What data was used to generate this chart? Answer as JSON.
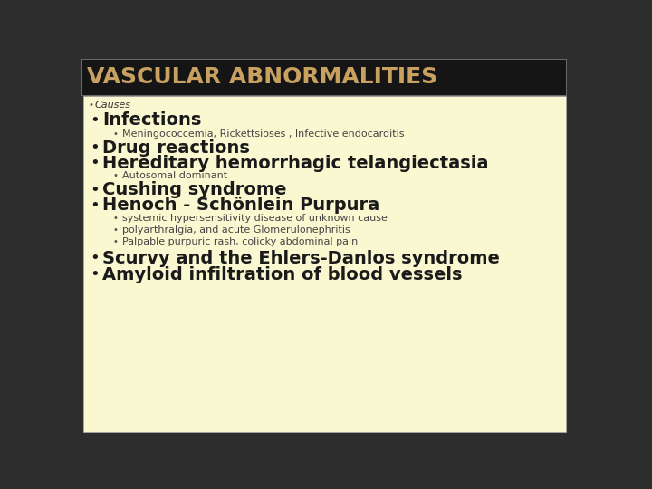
{
  "title": "VASCULAR ABNORMALITIES",
  "title_bg": "#151515",
  "title_color": "#c8a060",
  "content_bg": "#faf8d0",
  "outer_bg": "#2d2d2d",
  "small_bullet_color": "#555555",
  "large_bullet_color": "#1a1a1a",
  "text_color_dark": "#1a1a1a",
  "text_color_sub": "#444444",
  "causes_label": "Causes",
  "causes_font_size": 8,
  "title_font_size": 18,
  "level1_font_size": 14,
  "level2_font_size": 8,
  "items": [
    {
      "level": 1,
      "text": "Infections",
      "bold": true
    },
    {
      "level": 2,
      "text": "Meningococcemia, Rickettsioses , Infective endocarditis",
      "bold": false
    },
    {
      "level": 1,
      "text": "Drug reactions",
      "bold": true
    },
    {
      "level": 1,
      "text": "Hereditary hemorrhagic telangiectasia",
      "bold": true
    },
    {
      "level": 2,
      "text": "Autosomal dominant",
      "bold": false
    },
    {
      "level": 1,
      "text": "Cushing syndrome",
      "bold": true
    },
    {
      "level": 1,
      "text": "Henoch - Schönlein Purpura",
      "bold": true
    },
    {
      "level": 2,
      "text": "systemic hypersensitivity disease of unknown cause",
      "bold": false
    },
    {
      "level": 2,
      "text": "polyarthralgia, and acute Glomerulonephritis",
      "bold": false
    },
    {
      "level": 2,
      "text": "Palpable purpuric rash, colicky abdominal pain",
      "bold": false
    },
    {
      "level": 1,
      "text": "Scurvy and the Ehlers-Danlos syndrome",
      "bold": true
    },
    {
      "level": 1,
      "text": "Amyloid infiltration of blood vessels",
      "bold": true
    }
  ]
}
